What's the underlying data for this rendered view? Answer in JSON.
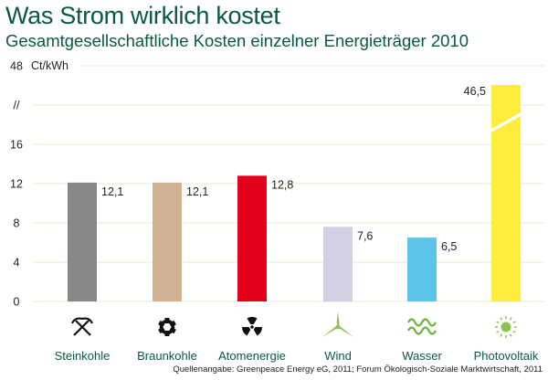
{
  "header": {
    "title": "Was Strom wirklich kostet",
    "subtitle": "Gesamtgesellschaftliche Kosten einzelner Energieträger 2010"
  },
  "footer": {
    "source": "Quellenangabe: Greenpeace Energy eG, 2011; Forum Ökologisch-Soziale Marktwirtschaft, 2011"
  },
  "chart_data": {
    "type": "bar",
    "title": "Was Strom wirklich kostet",
    "subtitle": "Gesamtgesellschaftliche Kosten einzelner Energieträger 2010",
    "ylabel": "Ct/kWh",
    "xlabel": "",
    "ylim": [
      0,
      48
    ],
    "axis_break": true,
    "y_ticks": [
      "0",
      "4",
      "8",
      "12",
      "16",
      "//",
      "48"
    ],
    "grid": true,
    "categories": [
      "Steinkohle",
      "Braunkohle",
      "Atomenergie",
      "Wind",
      "Wasser",
      "Photovoltaik"
    ],
    "values": [
      12.1,
      12.1,
      12.8,
      7.6,
      6.5,
      46.5
    ],
    "value_labels": [
      "12,1",
      "12,1",
      "12,8",
      "7,6",
      "6,5",
      "46,5"
    ],
    "colors": [
      "#858789",
      "#d2b295",
      "#e2001a",
      "#d2d0e3",
      "#5cc3ea",
      "#ffec3d"
    ],
    "icons": [
      "pickaxes-icon",
      "gear-icon",
      "radiation-icon",
      "wind-turbine-icon",
      "water-waves-icon",
      "sun-icon"
    ],
    "icon_colors": [
      "#111111",
      "#111111",
      "#111111",
      "#8dc255",
      "#6bb23a",
      "#8dc255"
    ]
  }
}
